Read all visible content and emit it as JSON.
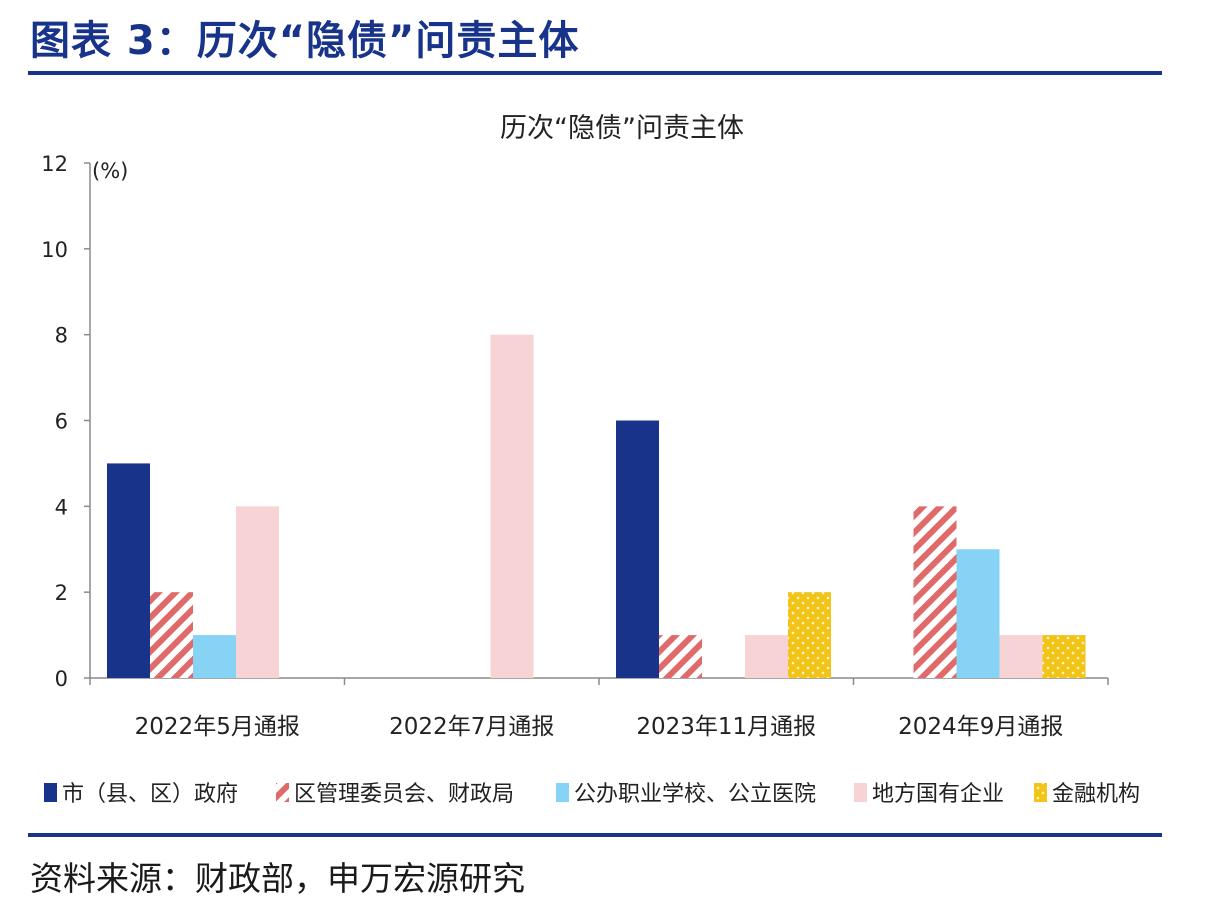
{
  "figure_title": "图表 3：历次“隐债”问责主体",
  "source_note": "资料来源：财政部，申万宏源研究",
  "chart_data": {
    "type": "bar",
    "title": "历次“隐债”问责主体",
    "ylabel": "(%)",
    "ylim": [
      0,
      12
    ],
    "yticks": [
      0,
      2,
      4,
      6,
      8,
      10,
      12
    ],
    "categories": [
      "2022年5月通报",
      "2022年7月通报",
      "2023年11月通报",
      "2024年9月通报"
    ],
    "series": [
      {
        "name": "市（县、区）政府",
        "values": [
          5,
          0,
          6,
          0
        ],
        "color": "#17338a",
        "pattern": "solid"
      },
      {
        "name": "区管理委员会、财政局",
        "values": [
          2,
          0,
          1,
          4
        ],
        "color": "#e06a6a",
        "pattern": "stripes"
      },
      {
        "name": "公办职业学校、公立医院",
        "values": [
          1,
          0,
          0,
          3
        ],
        "color": "#86d3f5",
        "pattern": "solid"
      },
      {
        "name": "地方国有企业",
        "values": [
          4,
          8,
          1,
          1
        ],
        "color": "#f7d3d6",
        "pattern": "solid"
      },
      {
        "name": "金融机构",
        "values": [
          0,
          0,
          2,
          1
        ],
        "color": "#f2c418",
        "pattern": "dots"
      }
    ],
    "grid": false,
    "legend_position": "bottom"
  }
}
